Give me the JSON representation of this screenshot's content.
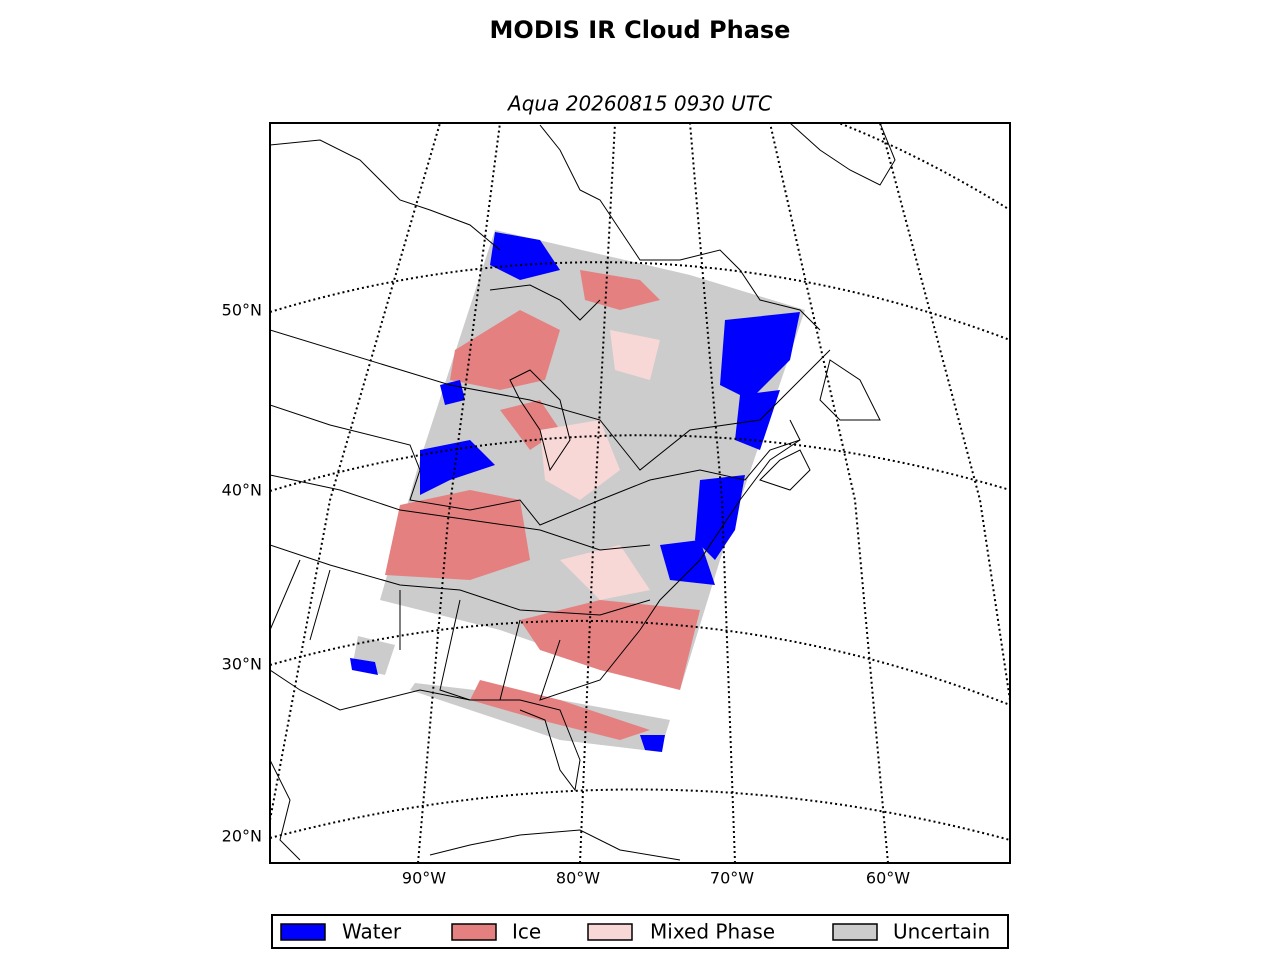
{
  "title": "MODIS IR Cloud Phase",
  "subtitle": "Aqua 20260815 0930 UTC",
  "lat_labels": [
    "50°N",
    "40°N",
    "30°N",
    "20°N"
  ],
  "lon_labels": [
    "90°W",
    "80°W",
    "70°W",
    "60°W"
  ],
  "legend": [
    {
      "label": "Water",
      "color": "#0000ff"
    },
    {
      "label": "Ice",
      "color": "#e58080"
    },
    {
      "label": "Mixed Phase",
      "color": "#f8d8d6"
    },
    {
      "label": "Uncertain",
      "color": "#cccccc"
    }
  ]
}
